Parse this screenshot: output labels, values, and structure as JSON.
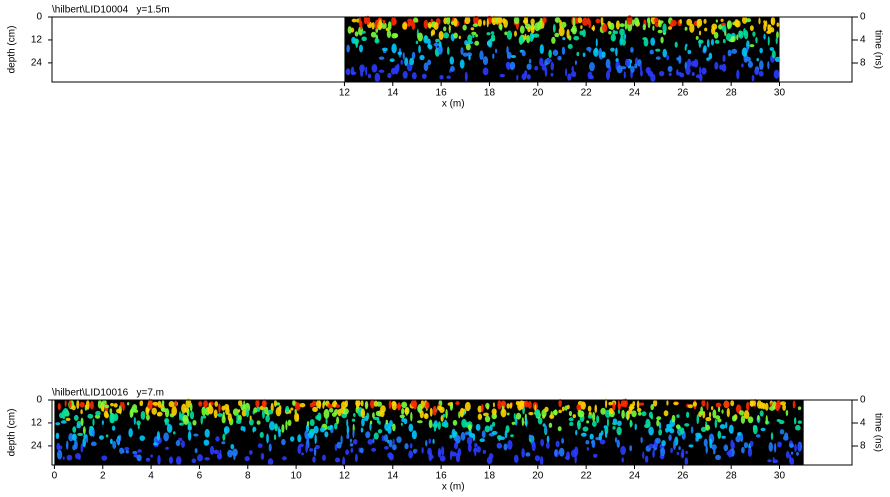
{
  "chart_data": [
    {
      "type": "radargram",
      "title": "\\hilbert\\LID10004   y=1.5m",
      "xlabel": "x (m)",
      "ylabel": "depth (cm)",
      "y2label": "time (ns)",
      "xlim": [
        -0.1,
        33
      ],
      "xticks": [
        12,
        14,
        16,
        18,
        20,
        22,
        24,
        26,
        28,
        30
      ],
      "data_xrange": [
        12,
        30
      ],
      "ylim": [
        0,
        34
      ],
      "yticks": [
        0,
        12,
        24
      ],
      "y2lim": [
        0,
        11.3
      ],
      "y2ticks": [
        0,
        4,
        8
      ],
      "y_inverted": true
    },
    {
      "type": "radargram",
      "title": "\\hilbert\\LID10016   y=7.m",
      "xlabel": "x (m)",
      "ylabel": "depth (cm)",
      "y2label": "time (ns)",
      "xlim": [
        -0.1,
        33
      ],
      "xticks": [
        0,
        2,
        4,
        6,
        8,
        10,
        12,
        14,
        16,
        18,
        20,
        22,
        24,
        26,
        28,
        30
      ],
      "data_xrange": [
        0,
        31
      ],
      "ylim": [
        0,
        34
      ],
      "yticks": [
        0,
        12,
        24
      ],
      "y2lim": [
        0,
        11.3
      ],
      "y2ticks": [
        0,
        4,
        8
      ],
      "y_inverted": true
    }
  ]
}
